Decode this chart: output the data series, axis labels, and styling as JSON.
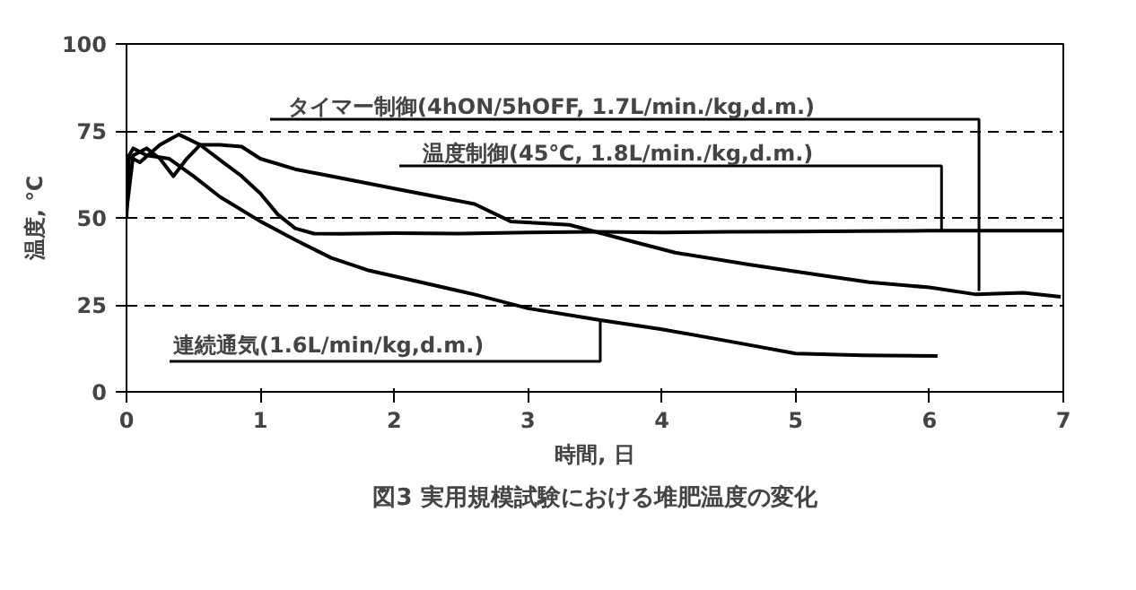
{
  "chart_data": {
    "type": "line",
    "title": "図3 実用規模試験における堆肥温度の変化",
    "xlabel": "時間, 日",
    "ylabel": "温度, ℃",
    "xlim": [
      0,
      7
    ],
    "ylim": [
      0,
      100
    ],
    "xticks": [
      0,
      1,
      2,
      3,
      4,
      5,
      6,
      7
    ],
    "yticks": [
      0,
      25,
      50,
      75,
      100
    ],
    "grid": "y",
    "marker": "none",
    "line_style": "solid",
    "series": [
      {
        "color": "#000000",
        "x": [
          0,
          0.05,
          0.15,
          0.25,
          0.35,
          0.45,
          0.55,
          0.7,
          0.86,
          1.0,
          1.26,
          1.53,
          2.06,
          2.6,
          2.87,
          3.31,
          3.7,
          4.1,
          4.65,
          5.1,
          5.55,
          6.0,
          6.35,
          6.7,
          6.98
        ],
        "values": [
          52,
          68,
          70,
          67,
          62,
          67,
          71,
          71,
          70.5,
          67,
          64,
          62,
          58,
          54,
          49,
          48,
          44,
          40,
          36.6,
          34,
          31.5,
          30,
          28,
          28.5,
          27.3
        ]
      },
      {
        "color": "#000000",
        "x": [
          0,
          0.1,
          0.25,
          0.39,
          0.55,
          0.72,
          0.86,
          1.0,
          1.13,
          1.26,
          1.4,
          1.6,
          2.0,
          2.5,
          3.0,
          3.5,
          4.0,
          4.5,
          5.0,
          5.5,
          6.0,
          6.5,
          7.0
        ],
        "values": [
          68,
          66,
          71,
          74,
          71,
          66,
          62,
          57,
          51,
          47,
          45.5,
          45.4,
          45.6,
          45.5,
          45.8,
          46,
          45.8,
          46,
          46.1,
          46.2,
          46.3,
          46.3,
          46.3
        ]
      },
      {
        "color": "#000000",
        "x": [
          0,
          0.02,
          0.05,
          0.15,
          0.32,
          0.5,
          0.7,
          1.0,
          1.26,
          1.53,
          1.8,
          2.2,
          2.6,
          3.0,
          3.54,
          4.0,
          4.65,
          5.0,
          5.5,
          6.06
        ],
        "values": [
          50,
          68,
          70,
          68,
          67,
          62,
          56,
          49,
          43.7,
          38.5,
          35,
          31.5,
          28,
          24,
          20.6,
          18,
          13.5,
          11,
          10.5,
          10.3
        ]
      }
    ],
    "annotations": [
      {
        "text": "タイマー制御(4hON/5hOFF, 1.7L/min./kg,d.m.)",
        "x": 6.37,
        "y": 29
      },
      {
        "text": "温度制御(45℃, 1.8L/min./kg,d.m.)",
        "x": 6.09,
        "y": 46.3
      },
      {
        "text": "連続通気(1.6L/min/kg,d.m.)",
        "x": 3.54,
        "y": 20.6
      }
    ]
  }
}
